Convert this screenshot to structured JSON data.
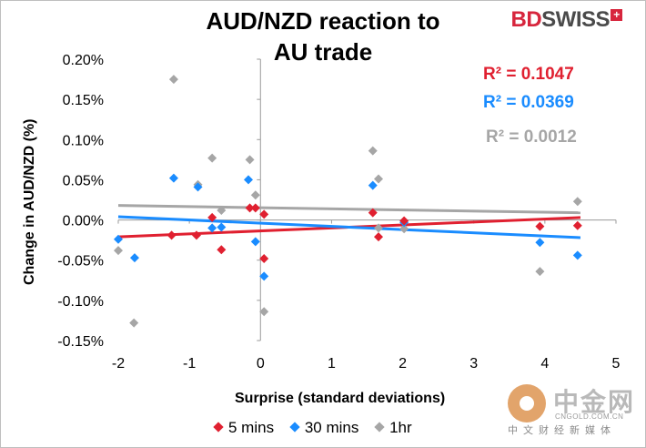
{
  "chart_data": {
    "type": "scatter",
    "title_lines": [
      "AUD/NZD reaction to",
      "AU trade"
    ],
    "xlabel": "Surprise (standard deviations)",
    "ylabel": "Change in AUD/NZD (%)",
    "xlim": [
      -2,
      5
    ],
    "ylim": [
      -0.15,
      0.2
    ],
    "x_ticks": [
      -2,
      -1,
      0,
      1,
      2,
      3,
      4,
      5
    ],
    "x_tick_labels": [
      "-2",
      "-1",
      "0",
      "1",
      "2",
      "3",
      "4",
      "5"
    ],
    "y_ticks": [
      -0.15,
      -0.1,
      -0.05,
      0,
      0.05,
      0.1,
      0.15,
      0.2
    ],
    "y_tick_labels": [
      "-0.15%",
      "-0.10%",
      "-0.05%",
      "0.00%",
      "0.05%",
      "0.10%",
      "0.15%",
      "0.20%"
    ],
    "grid": false,
    "legend_position": "bottom",
    "series": [
      {
        "name": "5 mins",
        "color": "#e02030",
        "r2_label": "R² = 0.1047",
        "trendline": [
          [
            -2,
            -0.021
          ],
          [
            4.5,
            0.003
          ]
        ],
        "points": [
          [
            -1.25,
            -0.019
          ],
          [
            -0.9,
            -0.019
          ],
          [
            -0.68,
            0.003
          ],
          [
            -0.55,
            -0.037
          ],
          [
            -0.15,
            0.015
          ],
          [
            -0.07,
            0.015
          ],
          [
            0.05,
            0.007
          ],
          [
            0.05,
            -0.048
          ],
          [
            1.58,
            0.009
          ],
          [
            1.66,
            -0.021
          ],
          [
            2.02,
            -0.001
          ],
          [
            3.93,
            -0.008
          ],
          [
            4.46,
            -0.007
          ]
        ]
      },
      {
        "name": "30 mins",
        "color": "#1a8cff",
        "r2_label": "R² = 0.0369",
        "trendline": [
          [
            -2,
            0.004
          ],
          [
            4.5,
            -0.022
          ]
        ],
        "points": [
          [
            -2.0,
            -0.024
          ],
          [
            -1.77,
            -0.047
          ],
          [
            -1.22,
            0.052
          ],
          [
            -0.88,
            0.041
          ],
          [
            -0.68,
            -0.01
          ],
          [
            -0.55,
            -0.009
          ],
          [
            -0.17,
            0.05
          ],
          [
            -0.07,
            -0.027
          ],
          [
            0.05,
            -0.07
          ],
          [
            1.58,
            0.043
          ],
          [
            2.02,
            -0.003
          ],
          [
            3.93,
            -0.028
          ],
          [
            4.46,
            -0.044
          ]
        ]
      },
      {
        "name": "1hr",
        "color": "#a6a6a6",
        "r2_label": "R² = 0.0012",
        "trendline": [
          [
            -2,
            0.018
          ],
          [
            4.5,
            0.009
          ]
        ],
        "points": [
          [
            -2.0,
            -0.038
          ],
          [
            -1.78,
            -0.128
          ],
          [
            -1.22,
            0.175
          ],
          [
            -0.88,
            0.044
          ],
          [
            -0.68,
            0.077
          ],
          [
            -0.55,
            0.012
          ],
          [
            -0.15,
            0.075
          ],
          [
            -0.07,
            0.031
          ],
          [
            0.05,
            -0.114
          ],
          [
            1.58,
            0.086
          ],
          [
            1.66,
            0.051
          ],
          [
            1.66,
            -0.01
          ],
          [
            2.02,
            -0.011
          ],
          [
            3.93,
            -0.064
          ],
          [
            4.46,
            0.023
          ]
        ]
      }
    ]
  },
  "logo": {
    "bd": "BD",
    "swiss": "SWISS",
    "plus": "+"
  },
  "watermark": {
    "text": "中金网",
    "domain": "CNGOLD.COM.CN",
    "subtitle": "中文财经新媒体"
  }
}
